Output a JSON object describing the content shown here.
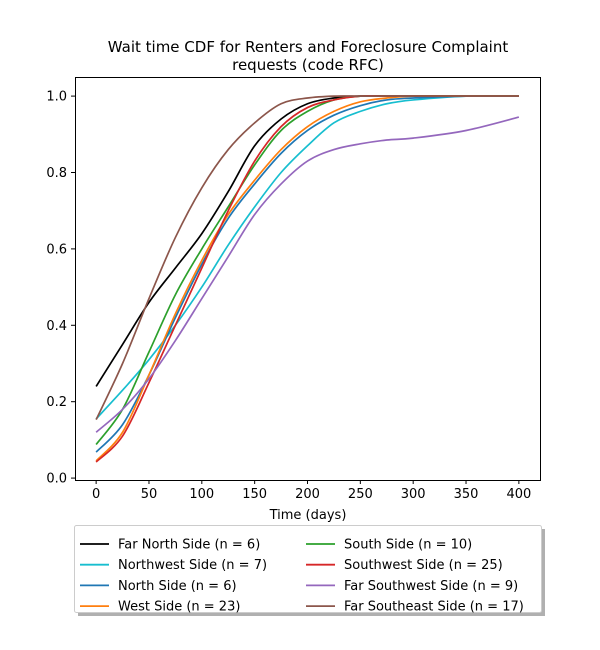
{
  "chart_data": {
    "type": "line",
    "title_lines": [
      "Wait time CDF for Renters and Foreclosure Complaint",
      "requests (code RFC)"
    ],
    "xlabel": "Time (days)",
    "ylabel": "",
    "xlim": [
      -20,
      420
    ],
    "ylim": [
      -0.005,
      1.05
    ],
    "xticks": [
      "0",
      "50",
      "100",
      "150",
      "200",
      "250",
      "300",
      "350",
      "400"
    ],
    "yticks": [
      "0.0",
      "0.2",
      "0.4",
      "0.6",
      "0.8",
      "1.0"
    ],
    "grid": false,
    "legend_position": "bottom",
    "x": [
      0,
      25,
      50,
      75,
      100,
      125,
      150,
      175,
      200,
      225,
      250,
      275,
      300,
      350,
      400
    ],
    "series": [
      {
        "name": "Far North Side (n = 6)",
        "color": "#000000",
        "values": [
          0.24,
          0.35,
          0.46,
          0.55,
          0.64,
          0.75,
          0.87,
          0.94,
          0.98,
          0.995,
          1.0,
          1.0,
          1.0,
          1.0,
          1.0
        ]
      },
      {
        "name": "Northwest Side (n = 7)",
        "color": "#17becf",
        "values": [
          0.155,
          0.23,
          0.31,
          0.4,
          0.5,
          0.61,
          0.71,
          0.8,
          0.87,
          0.93,
          0.96,
          0.98,
          0.99,
          1.0,
          1.0
        ]
      },
      {
        "name": "North Side (n = 6)",
        "color": "#1f77b4",
        "values": [
          0.068,
          0.14,
          0.27,
          0.42,
          0.56,
          0.68,
          0.77,
          0.85,
          0.91,
          0.95,
          0.975,
          0.99,
          0.995,
          1.0,
          1.0
        ]
      },
      {
        "name": "West Side (n = 23)",
        "color": "#ff7f0e",
        "values": [
          0.045,
          0.12,
          0.27,
          0.43,
          0.57,
          0.69,
          0.78,
          0.86,
          0.92,
          0.96,
          0.985,
          0.995,
          1.0,
          1.0,
          1.0
        ]
      },
      {
        "name": "South Side (n = 10)",
        "color": "#2ca02c",
        "values": [
          0.088,
          0.18,
          0.33,
          0.48,
          0.6,
          0.71,
          0.82,
          0.91,
          0.96,
          0.99,
          1.0,
          1.0,
          1.0,
          1.0,
          1.0
        ]
      },
      {
        "name": "Southwest Side (n = 25)",
        "color": "#d62728",
        "values": [
          0.042,
          0.11,
          0.25,
          0.4,
          0.55,
          0.7,
          0.83,
          0.92,
          0.97,
          0.99,
          1.0,
          1.0,
          1.0,
          1.0,
          1.0
        ]
      },
      {
        "name": "Far Southwest Side (n = 9)",
        "color": "#9467bd",
        "values": [
          0.12,
          0.18,
          0.26,
          0.36,
          0.47,
          0.58,
          0.69,
          0.77,
          0.83,
          0.86,
          0.875,
          0.885,
          0.89,
          0.91,
          0.945
        ]
      },
      {
        "name": "Far Southeast Side (n = 17)",
        "color": "#8c564b",
        "values": [
          0.153,
          0.3,
          0.47,
          0.63,
          0.76,
          0.86,
          0.93,
          0.98,
          0.995,
          1.0,
          1.0,
          1.0,
          1.0,
          1.0,
          1.0
        ]
      }
    ]
  }
}
